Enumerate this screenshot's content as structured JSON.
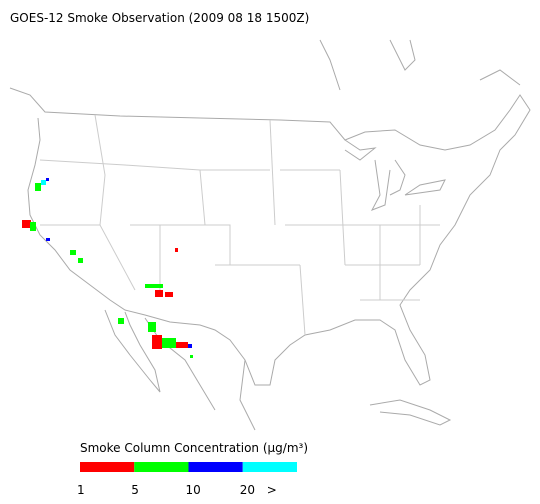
{
  "title": "GOES-12 Smoke Observation (2009 08 18  1500Z)",
  "legend": {
    "title": "Smoke Column Concentration (μg/m³)",
    "colors": [
      "#ff0000",
      "#00ff00",
      "#0000ff",
      "#00ffff"
    ],
    "labels": [
      "1",
      "5",
      "10",
      "20",
      ">"
    ]
  }
}
